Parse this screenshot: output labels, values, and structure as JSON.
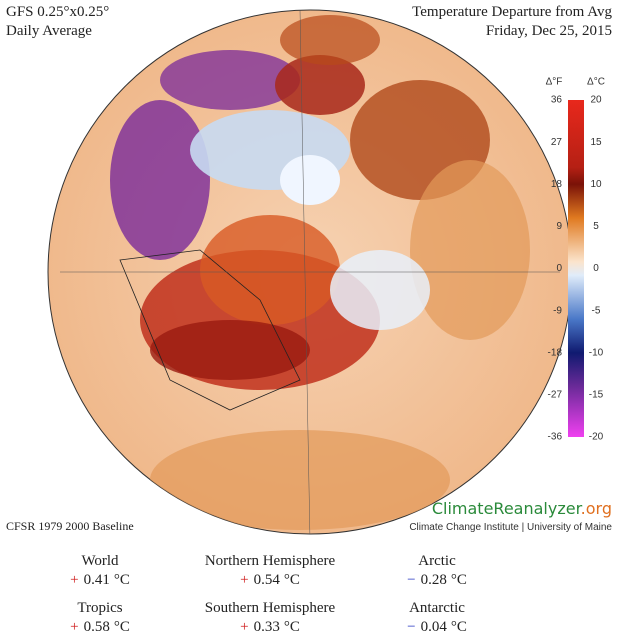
{
  "header": {
    "model": "GFS 0.25°x0.25°",
    "period": "Daily Average",
    "title": "Temperature Departure from Avg",
    "date": "Friday, Dec 25, 2015"
  },
  "colorbar": {
    "f_label": "Δ°F",
    "c_label": "Δ°C",
    "f_ticks": [
      36,
      27,
      18,
      9,
      0,
      -9,
      -18,
      -27,
      -36
    ],
    "c_ticks": [
      20,
      15,
      10,
      5,
      0,
      -5,
      -10,
      -15,
      -20
    ]
  },
  "branding": {
    "site_main": "ClimateReanalyzer",
    "site_tld": ".org",
    "institute": "Climate Change Institute | University of Maine"
  },
  "baseline": "CFSR 1979 2000 Baseline",
  "stats": [
    {
      "name": "World",
      "sign": "+",
      "value": 0.41,
      "unit": "°C"
    },
    {
      "name": "Northern Hemisphere",
      "sign": "+",
      "value": 0.54,
      "unit": "°C"
    },
    {
      "name": "Arctic",
      "sign": "−",
      "value": 0.28,
      "unit": "°C"
    },
    {
      "name": "Tropics",
      "sign": "+",
      "value": 0.58,
      "unit": "°C"
    },
    {
      "name": "Southern Hemisphere",
      "sign": "+",
      "value": 0.33,
      "unit": "°C"
    },
    {
      "name": "Antarctic",
      "sign": "−",
      "value": 0.04,
      "unit": "°C"
    }
  ]
}
